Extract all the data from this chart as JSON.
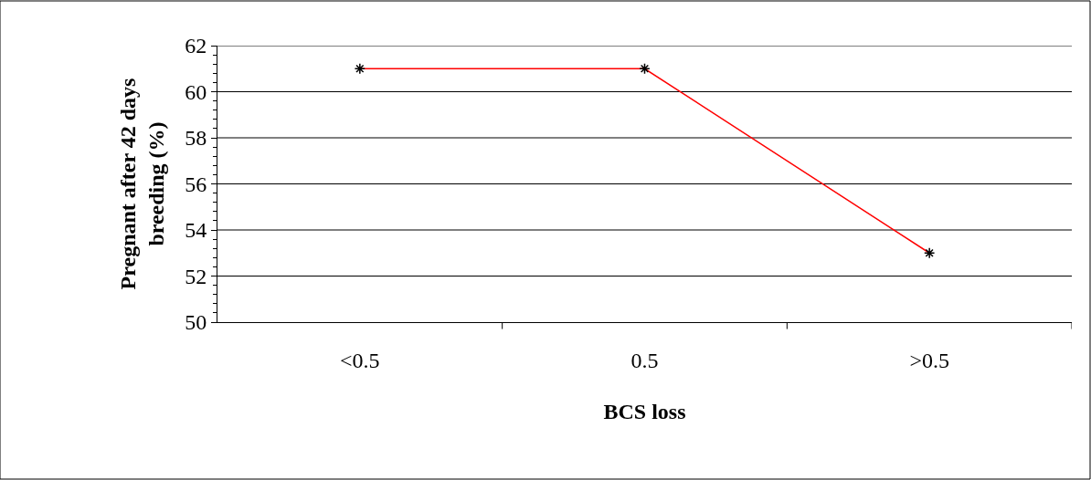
{
  "chart_data": {
    "type": "line",
    "xlabel": "BCS loss",
    "ylabel": "Pregnant after 42 days breeding (%)",
    "categories": [
      "<0.5",
      "0.5",
      ">0.5"
    ],
    "series": [
      {
        "color": "#ff0000",
        "values": [
          61,
          61,
          53
        ]
      }
    ],
    "ylim": [
      50,
      62
    ],
    "yticks": [
      50,
      52,
      54,
      56,
      58,
      60,
      62
    ],
    "grid": "y",
    "legend": false,
    "marker": "cross",
    "line_style": "solid"
  }
}
